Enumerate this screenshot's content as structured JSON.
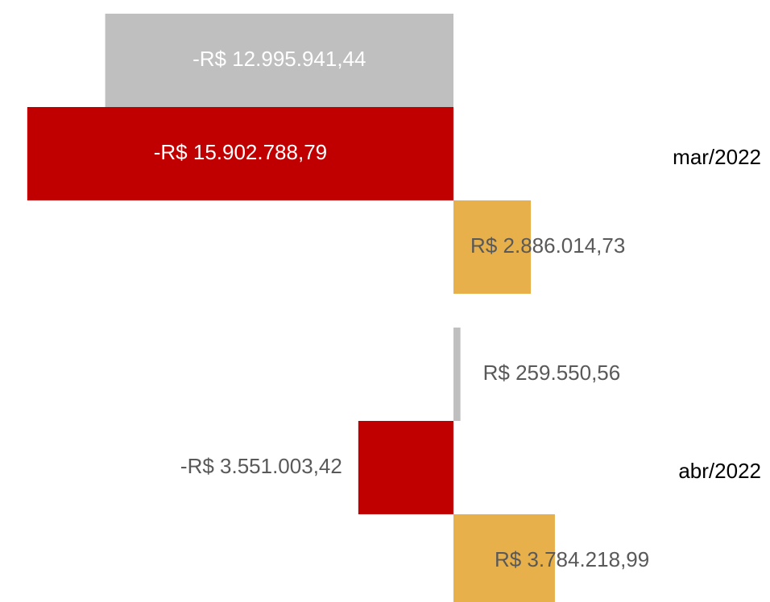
{
  "chart_data": {
    "type": "bar",
    "orientation": "horizontal",
    "categories": [
      "mar/2022",
      "abr/2022"
    ],
    "series": [
      {
        "color": "#bfbfbf",
        "values": [
          -12995941.44,
          259550.56
        ],
        "value_labels": [
          "-R$ 12.995.941,44",
          "R$ 259.550,56"
        ]
      },
      {
        "color": "#c00000",
        "values": [
          -15902788.79,
          -3551003.42
        ],
        "value_labels": [
          "-R$ 15.902.788,79",
          "-R$ 3.551.003,42"
        ]
      },
      {
        "color": "#e8b04a",
        "values": [
          2886014.73,
          3784218.99
        ],
        "value_labels": [
          "R$ 2.886.014,73",
          "R$ 3.784.218,99"
        ]
      }
    ],
    "xlim": [
      -16920000,
      11810000
    ]
  }
}
